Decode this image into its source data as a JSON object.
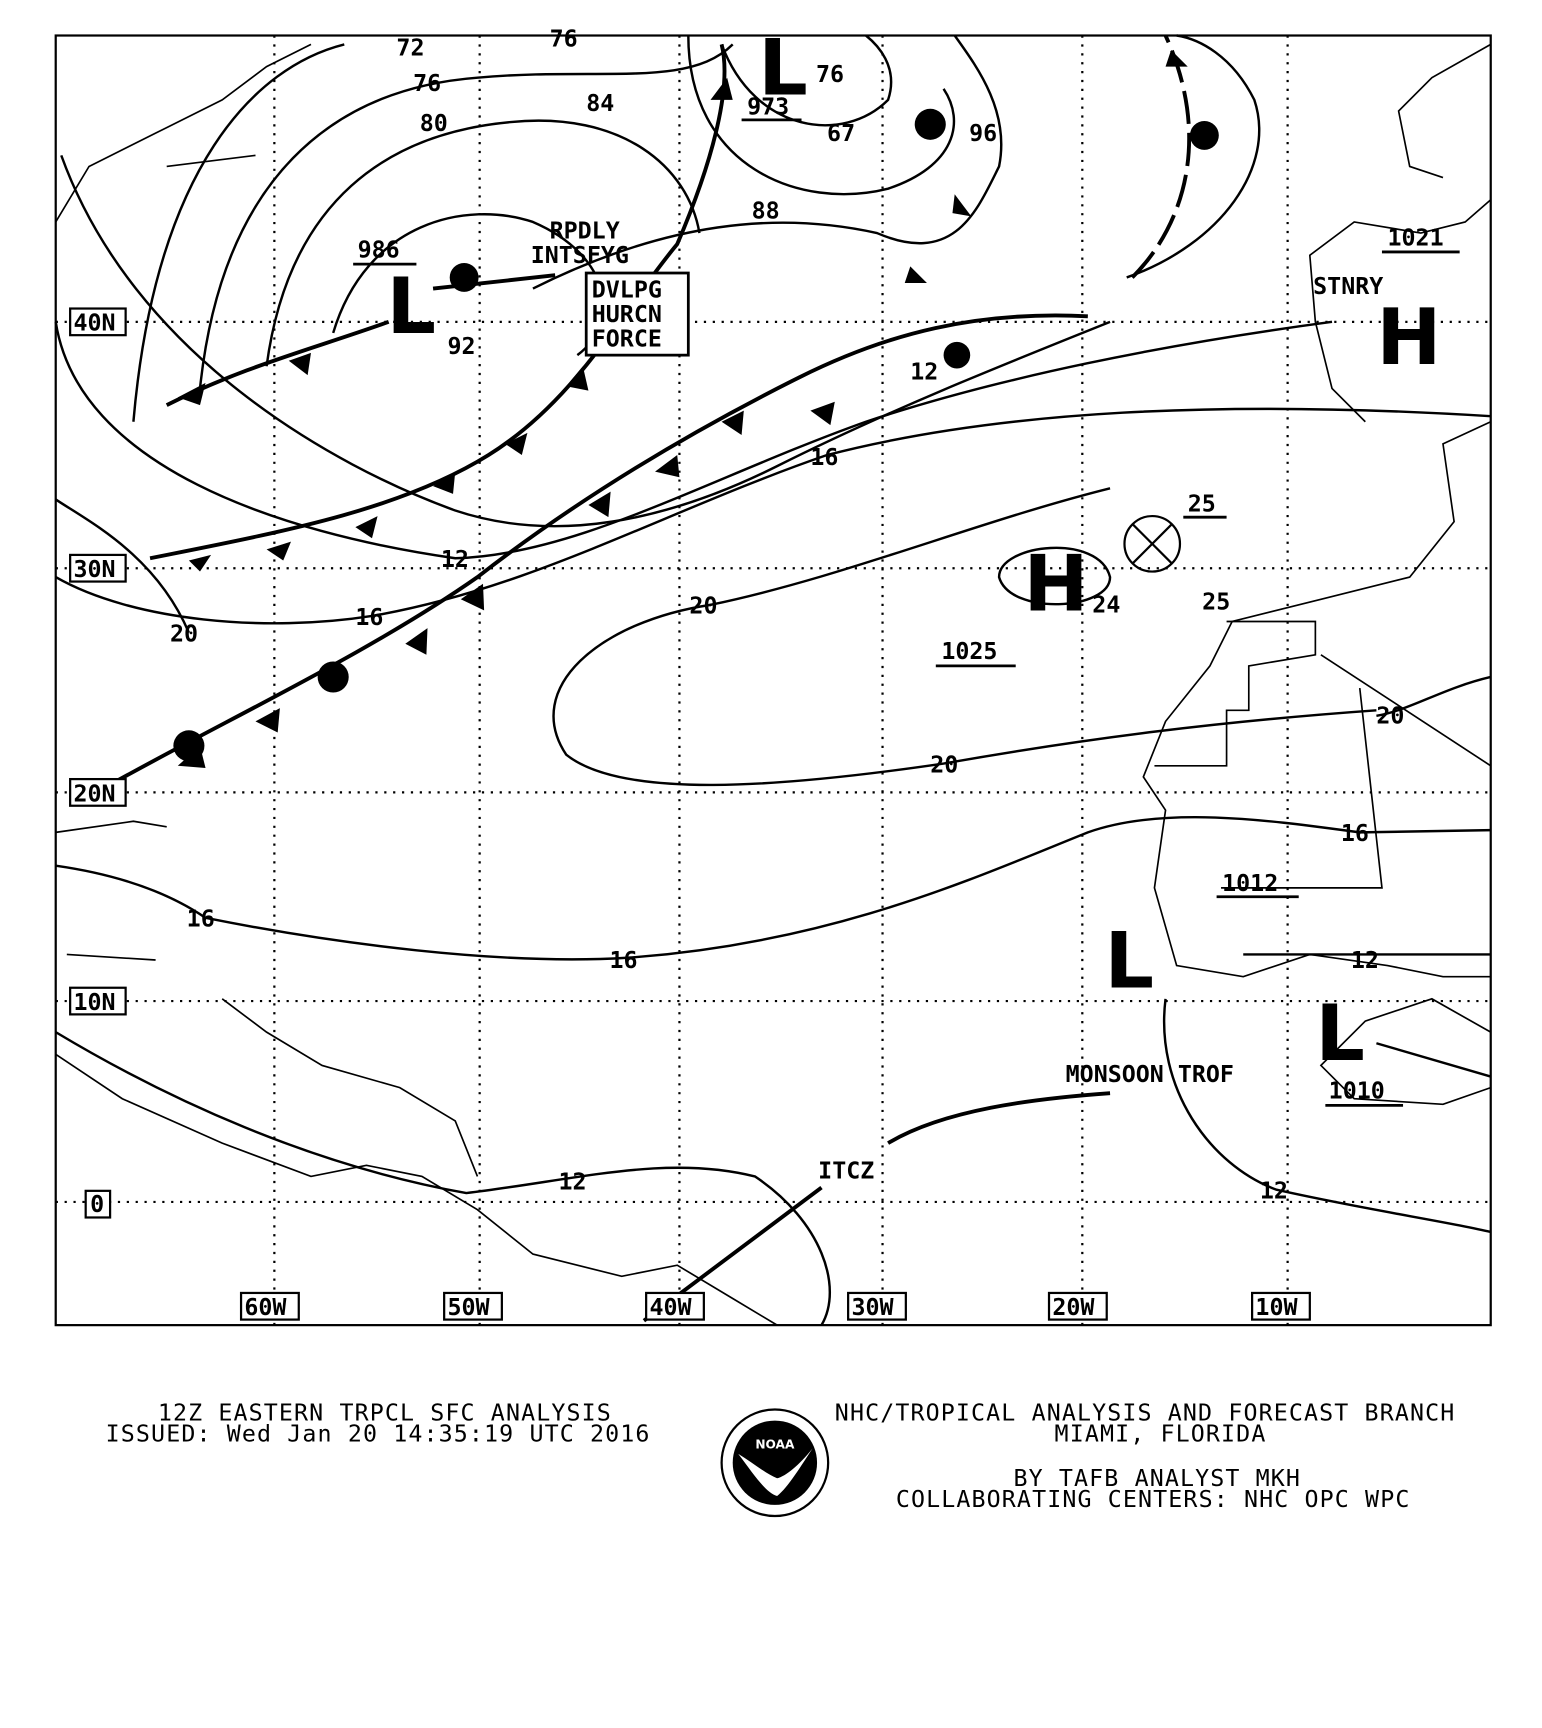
{
  "map": {
    "lat_labels": [
      "40N",
      "30N",
      "20N",
      "10N",
      "0"
    ],
    "lon_labels": [
      "60W",
      "50W",
      "40W",
      "30W",
      "20W",
      "10W"
    ],
    "isobar_labels": [
      "72",
      "76",
      "76",
      "80",
      "84",
      "973",
      "76",
      "67",
      "96",
      "88",
      "986",
      "92",
      "12",
      "16",
      "12",
      "16",
      "20",
      "20",
      "25",
      "24",
      "25",
      "1025",
      "20",
      "20",
      "16",
      "16",
      "16",
      "1012",
      "12",
      "1010",
      "12",
      "12",
      "1021"
    ],
    "pressure_centers": [
      {
        "type": "L",
        "value": "986"
      },
      {
        "type": "L",
        "value": "973"
      },
      {
        "type": "H",
        "value": "1025"
      },
      {
        "type": "H",
        "value": "1021"
      },
      {
        "type": "L",
        "value": "1012"
      },
      {
        "type": "L",
        "value": "1010"
      }
    ],
    "annotations": {
      "rpdly": "RPDLY",
      "intsfyg": "INTSFYG",
      "box_line1": "DVLPG",
      "box_line2": "HURCN",
      "box_line3": "FORCE",
      "stnry": "STNRY",
      "monsoon": "MONSOON TROF",
      "itcz": "ITCZ"
    }
  },
  "footer": {
    "title": "12Z EASTERN TRPCL SFC ANALYSIS",
    "issued": "ISSUED: Wed Jan 20 14:35:19 UTC 2016",
    "org": "NHC/TROPICAL ANALYSIS AND FORECAST BRANCH",
    "location": "MIAMI,  FLORIDA",
    "analyst": "BY TAFB ANALYST  MKH",
    "centers": "COLLABORATING CENTERS: NHC OPC WPC",
    "logo_text": "NOAA"
  }
}
